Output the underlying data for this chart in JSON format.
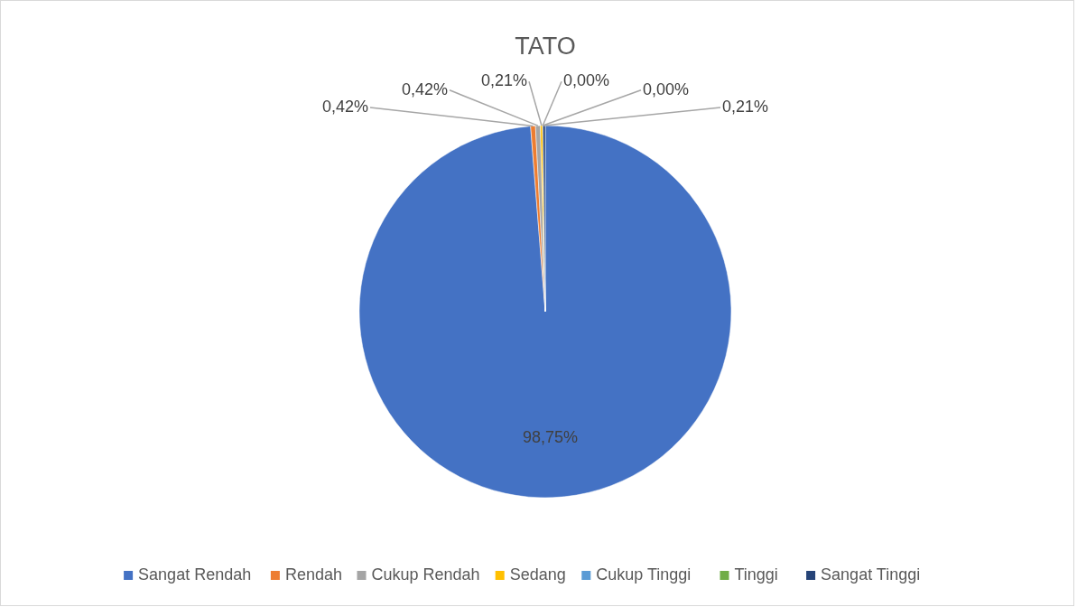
{
  "chart_data": {
    "type": "pie",
    "title": "TATO",
    "categories": [
      "Sangat Rendah",
      "Rendah",
      "Cukup Rendah",
      "Sedang",
      "Cukup Tinggi",
      "Tinggi",
      "Sangat Tinggi"
    ],
    "values": [
      98.75,
      0.42,
      0.42,
      0.21,
      0,
      0,
      0.21
    ],
    "value_labels": [
      "98,75%",
      "0,42%",
      "0,42%",
      "0,21%",
      "0,00%",
      "0,00%",
      "0,21%"
    ],
    "colors": [
      "#4472c4",
      "#ed7d31",
      "#a5a5a5",
      "#ffc000",
      "#5b9bd5",
      "#70ad47",
      "#264478"
    ],
    "legend": "bottom"
  }
}
